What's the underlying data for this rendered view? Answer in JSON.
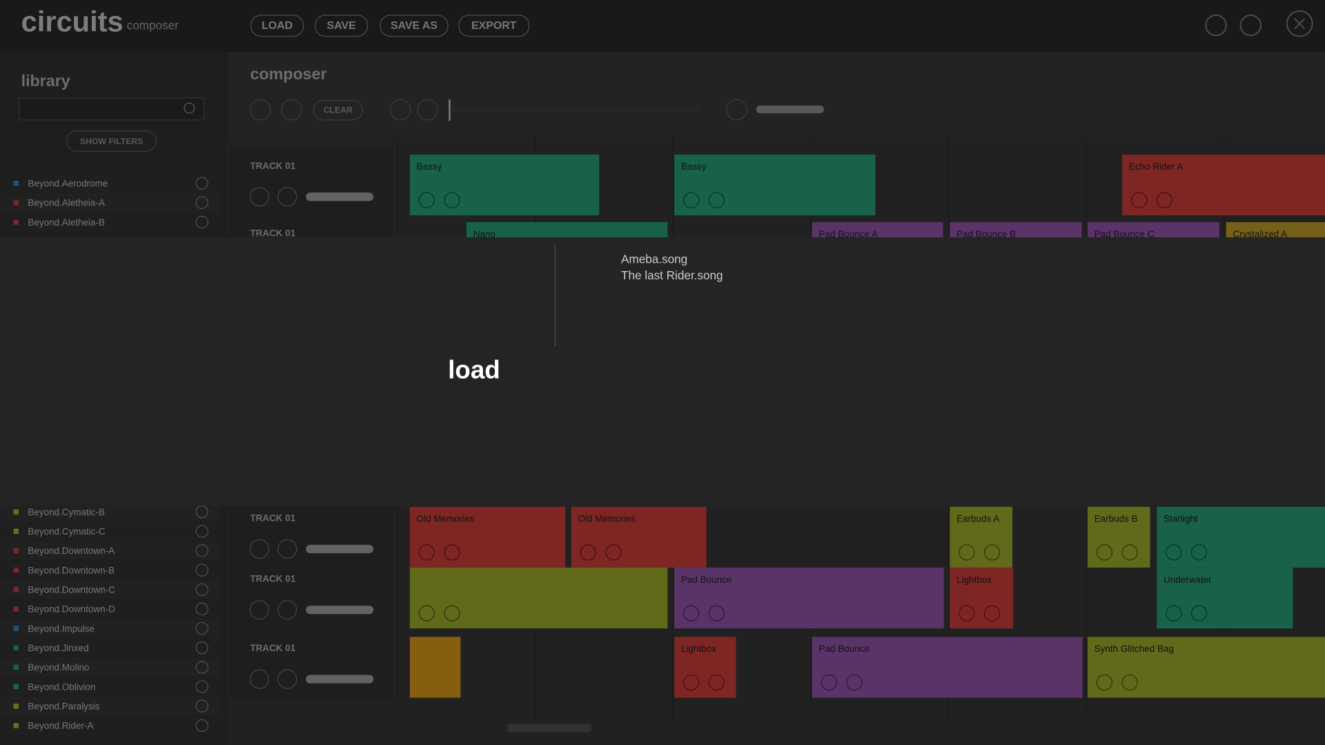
{
  "header": {
    "logo": "circuits",
    "subtitle": "composer",
    "buttons": [
      "LOAD",
      "SAVE",
      "SAVE AS",
      "EXPORT"
    ]
  },
  "library": {
    "title": "library",
    "filter_button": "SHOW FILTERS",
    "items": [
      {
        "name": "Beyond.Aerodrome",
        "color": "#3a8fd0"
      },
      {
        "name": "Beyond.Aletheia-A",
        "color": "#d9433f"
      },
      {
        "name": "Beyond.Aletheia-B",
        "color": "#d9433f"
      },
      {
        "name": "Beyond.Cymatic-B",
        "color": "#c9b82c"
      },
      {
        "name": "Beyond.Cymatic-C",
        "color": "#c9b82c"
      },
      {
        "name": "Beyond.Downtown-A",
        "color": "#d9433f"
      },
      {
        "name": "Beyond.Downtown-B",
        "color": "#d9433f"
      },
      {
        "name": "Beyond.Downtown-C",
        "color": "#d9433f"
      },
      {
        "name": "Beyond.Downtown-D",
        "color": "#d9433f"
      },
      {
        "name": "Beyond.Impulse",
        "color": "#3a8fd0"
      },
      {
        "name": "Beyond.Jinxed",
        "color": "#2aa97f"
      },
      {
        "name": "Beyond.Molino",
        "color": "#2aa97f"
      },
      {
        "name": "Beyond.Oblivion",
        "color": "#2aa9a0"
      },
      {
        "name": "Beyond.Paralysis",
        "color": "#c9b82c"
      },
      {
        "name": "Beyond.Rider-A",
        "color": "#c9b82c"
      }
    ]
  },
  "composer": {
    "title": "composer",
    "clear_button": "CLEAR",
    "tracks": [
      {
        "name": "TRACK 01",
        "clips": [
          {
            "label": "Bassy",
            "color": "#2aa97f"
          },
          {
            "label": "Bassy",
            "color": "#2aa97f"
          },
          {
            "label": "Echo Rider A",
            "color": "#d9433f"
          }
        ]
      },
      {
        "name": "TRACK 01",
        "clips": [
          {
            "label": "Nano",
            "color": "#2aa97f"
          },
          {
            "label": "Pad Bounce A",
            "color": "#9b59b6"
          },
          {
            "label": "Pad Bounce B",
            "color": "#9b59b6"
          },
          {
            "label": "Pad Bounce C",
            "color": "#9b59b6"
          },
          {
            "label": "Crystalized A",
            "color": "#c9a52c"
          }
        ]
      },
      {
        "name": "TRACK 01",
        "clips": [
          {
            "label": "Old Memories",
            "color": "#d9433f"
          },
          {
            "label": "Old Memories",
            "color": "#d9433f"
          },
          {
            "label": "Earbuds A",
            "color": "#a8b530"
          },
          {
            "label": "Earbuds B",
            "color": "#a8b530"
          },
          {
            "label": "Starlight",
            "color": "#2aa97f"
          }
        ]
      },
      {
        "name": "TRACK 01",
        "clips": [
          {
            "color": "#a8b530"
          },
          {
            "label": "Pad Bounce",
            "color": "#9b59b6"
          },
          {
            "label": "Lightbox",
            "color": "#d9433f"
          },
          {
            "label": "Underwater",
            "color": "#2aa97f"
          }
        ]
      },
      {
        "name": "TRACK 01",
        "clips": [
          {
            "color": "#e7a21a"
          },
          {
            "label": "Lightbox",
            "color": "#d9433f"
          },
          {
            "label": "Pad Bounce",
            "color": "#9b59b6"
          },
          {
            "label": "Synth Glitched Bag",
            "color": "#a8b530"
          }
        ]
      }
    ]
  },
  "load_dialog": {
    "title": "load",
    "files": [
      "Ameba.song",
      "The last Rider.song"
    ]
  }
}
